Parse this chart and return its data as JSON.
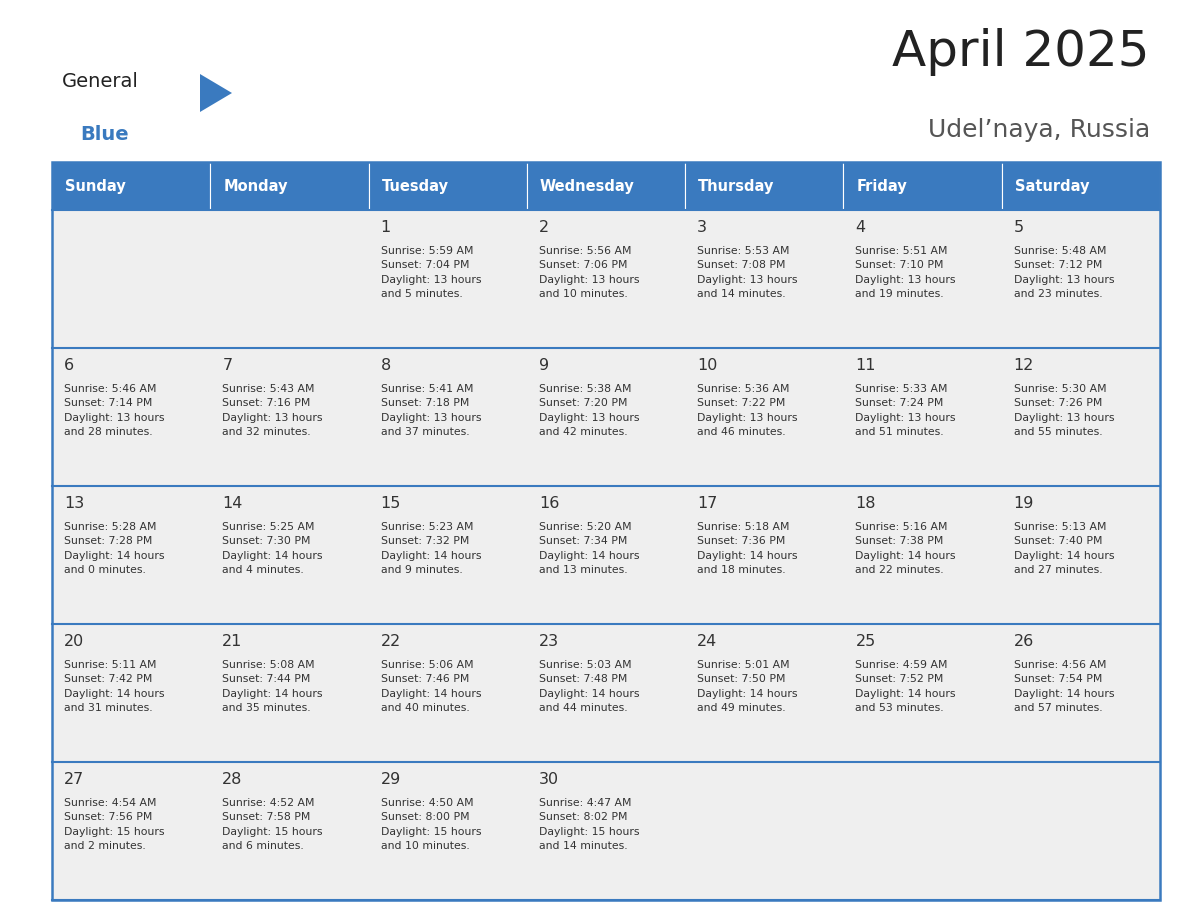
{
  "title": "April 2025",
  "subtitle": "Udel’naya, Russia",
  "header_bg": "#3a7abf",
  "header_text_color": "#ffffff",
  "cell_bg_light": "#efefef",
  "border_color": "#3a7abf",
  "text_color": "#333333",
  "weekdays": [
    "Sunday",
    "Monday",
    "Tuesday",
    "Wednesday",
    "Thursday",
    "Friday",
    "Saturday"
  ],
  "weeks": [
    [
      {
        "day": "",
        "info": ""
      },
      {
        "day": "",
        "info": ""
      },
      {
        "day": "1",
        "info": "Sunrise: 5:59 AM\nSunset: 7:04 PM\nDaylight: 13 hours\nand 5 minutes."
      },
      {
        "day": "2",
        "info": "Sunrise: 5:56 AM\nSunset: 7:06 PM\nDaylight: 13 hours\nand 10 minutes."
      },
      {
        "day": "3",
        "info": "Sunrise: 5:53 AM\nSunset: 7:08 PM\nDaylight: 13 hours\nand 14 minutes."
      },
      {
        "day": "4",
        "info": "Sunrise: 5:51 AM\nSunset: 7:10 PM\nDaylight: 13 hours\nand 19 minutes."
      },
      {
        "day": "5",
        "info": "Sunrise: 5:48 AM\nSunset: 7:12 PM\nDaylight: 13 hours\nand 23 minutes."
      }
    ],
    [
      {
        "day": "6",
        "info": "Sunrise: 5:46 AM\nSunset: 7:14 PM\nDaylight: 13 hours\nand 28 minutes."
      },
      {
        "day": "7",
        "info": "Sunrise: 5:43 AM\nSunset: 7:16 PM\nDaylight: 13 hours\nand 32 minutes."
      },
      {
        "day": "8",
        "info": "Sunrise: 5:41 AM\nSunset: 7:18 PM\nDaylight: 13 hours\nand 37 minutes."
      },
      {
        "day": "9",
        "info": "Sunrise: 5:38 AM\nSunset: 7:20 PM\nDaylight: 13 hours\nand 42 minutes."
      },
      {
        "day": "10",
        "info": "Sunrise: 5:36 AM\nSunset: 7:22 PM\nDaylight: 13 hours\nand 46 minutes."
      },
      {
        "day": "11",
        "info": "Sunrise: 5:33 AM\nSunset: 7:24 PM\nDaylight: 13 hours\nand 51 minutes."
      },
      {
        "day": "12",
        "info": "Sunrise: 5:30 AM\nSunset: 7:26 PM\nDaylight: 13 hours\nand 55 minutes."
      }
    ],
    [
      {
        "day": "13",
        "info": "Sunrise: 5:28 AM\nSunset: 7:28 PM\nDaylight: 14 hours\nand 0 minutes."
      },
      {
        "day": "14",
        "info": "Sunrise: 5:25 AM\nSunset: 7:30 PM\nDaylight: 14 hours\nand 4 minutes."
      },
      {
        "day": "15",
        "info": "Sunrise: 5:23 AM\nSunset: 7:32 PM\nDaylight: 14 hours\nand 9 minutes."
      },
      {
        "day": "16",
        "info": "Sunrise: 5:20 AM\nSunset: 7:34 PM\nDaylight: 14 hours\nand 13 minutes."
      },
      {
        "day": "17",
        "info": "Sunrise: 5:18 AM\nSunset: 7:36 PM\nDaylight: 14 hours\nand 18 minutes."
      },
      {
        "day": "18",
        "info": "Sunrise: 5:16 AM\nSunset: 7:38 PM\nDaylight: 14 hours\nand 22 minutes."
      },
      {
        "day": "19",
        "info": "Sunrise: 5:13 AM\nSunset: 7:40 PM\nDaylight: 14 hours\nand 27 minutes."
      }
    ],
    [
      {
        "day": "20",
        "info": "Sunrise: 5:11 AM\nSunset: 7:42 PM\nDaylight: 14 hours\nand 31 minutes."
      },
      {
        "day": "21",
        "info": "Sunrise: 5:08 AM\nSunset: 7:44 PM\nDaylight: 14 hours\nand 35 minutes."
      },
      {
        "day": "22",
        "info": "Sunrise: 5:06 AM\nSunset: 7:46 PM\nDaylight: 14 hours\nand 40 minutes."
      },
      {
        "day": "23",
        "info": "Sunrise: 5:03 AM\nSunset: 7:48 PM\nDaylight: 14 hours\nand 44 minutes."
      },
      {
        "day": "24",
        "info": "Sunrise: 5:01 AM\nSunset: 7:50 PM\nDaylight: 14 hours\nand 49 minutes."
      },
      {
        "day": "25",
        "info": "Sunrise: 4:59 AM\nSunset: 7:52 PM\nDaylight: 14 hours\nand 53 minutes."
      },
      {
        "day": "26",
        "info": "Sunrise: 4:56 AM\nSunset: 7:54 PM\nDaylight: 14 hours\nand 57 minutes."
      }
    ],
    [
      {
        "day": "27",
        "info": "Sunrise: 4:54 AM\nSunset: 7:56 PM\nDaylight: 15 hours\nand 2 minutes."
      },
      {
        "day": "28",
        "info": "Sunrise: 4:52 AM\nSunset: 7:58 PM\nDaylight: 15 hours\nand 6 minutes."
      },
      {
        "day": "29",
        "info": "Sunrise: 4:50 AM\nSunset: 8:00 PM\nDaylight: 15 hours\nand 10 minutes."
      },
      {
        "day": "30",
        "info": "Sunrise: 4:47 AM\nSunset: 8:02 PM\nDaylight: 15 hours\nand 14 minutes."
      },
      {
        "day": "",
        "info": ""
      },
      {
        "day": "",
        "info": ""
      },
      {
        "day": "",
        "info": ""
      }
    ]
  ],
  "logo_general_color": "#222222",
  "logo_blue_color": "#3a7abf",
  "logo_triangle_color": "#3a7abf",
  "title_color": "#222222",
  "subtitle_color": "#555555"
}
